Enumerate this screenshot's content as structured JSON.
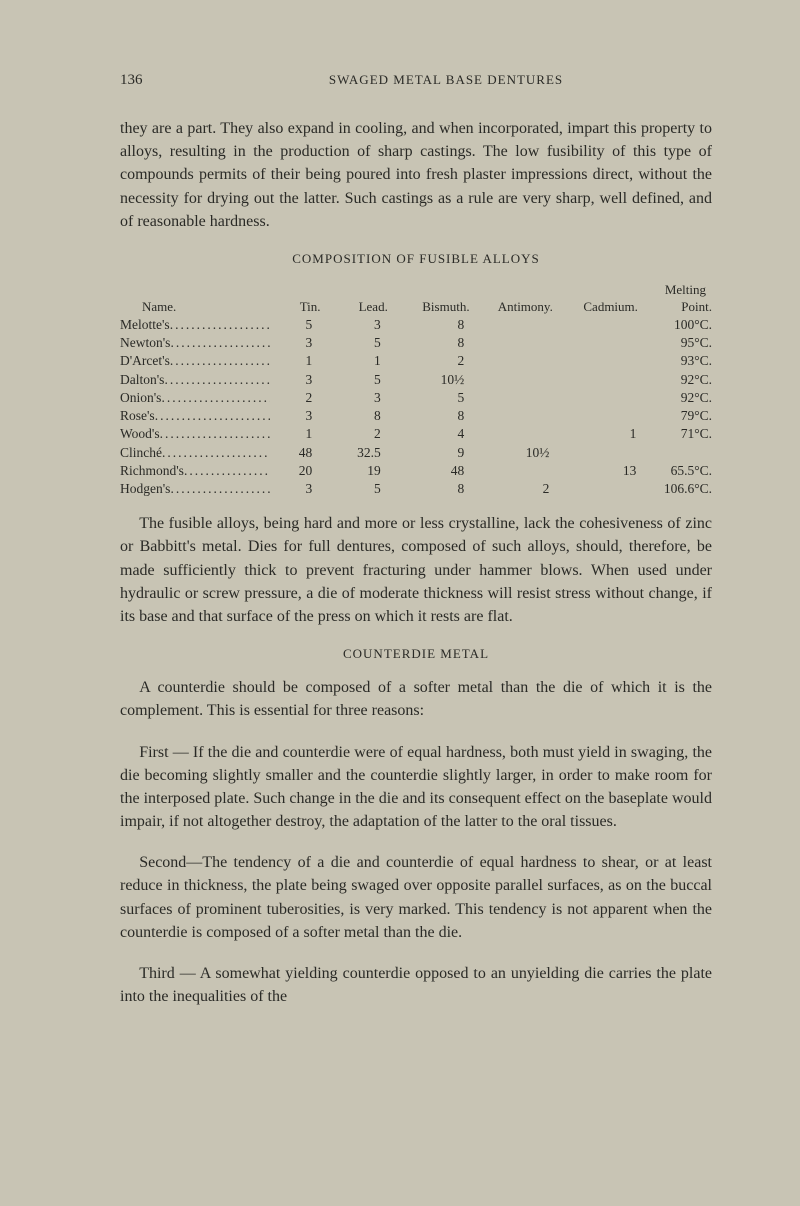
{
  "header": {
    "page_number": "136",
    "running_head": "SWAGED METAL BASE DENTURES"
  },
  "para1": "they are a part. They also expand in cooling, and when incorporated, impart this property to alloys, resulting in the production of sharp castings. The low fusibility of this type of compounds permits of their being poured into fresh plaster impressions direct, without the necessity for drying out the latter. Such castings as a rule are very sharp, well defined, and of reasonable hardness.",
  "table_title": "COMPOSITION OF FUSIBLE ALLOYS",
  "table": {
    "melting_label": "Melting",
    "headers": {
      "name": "Name.",
      "tin": "Tin.",
      "lead": "Lead.",
      "bismuth": "Bismuth.",
      "antimony": "Antimony.",
      "cadmium": "Cadmium.",
      "point": "Point."
    },
    "rows": [
      {
        "name": "Melotte's",
        "tin": "5",
        "lead": "3",
        "bis": "8",
        "ant": "",
        "cad": "",
        "mp": "100°C."
      },
      {
        "name": "Newton's",
        "tin": "3",
        "lead": "5",
        "bis": "8",
        "ant": "",
        "cad": "",
        "mp": "95°C."
      },
      {
        "name": "D'Arcet's",
        "tin": "1",
        "lead": "1",
        "bis": "2",
        "ant": "",
        "cad": "",
        "mp": "93°C."
      },
      {
        "name": "Dalton's",
        "tin": "3",
        "lead": "5",
        "bis": "10½",
        "ant": "",
        "cad": "",
        "mp": "92°C."
      },
      {
        "name": "Onion's",
        "tin": "2",
        "lead": "3",
        "bis": "5",
        "ant": "",
        "cad": "",
        "mp": "92°C."
      },
      {
        "name": "Rose's",
        "tin": "3",
        "lead": "8",
        "bis": "8",
        "ant": "",
        "cad": "",
        "mp": "79°C."
      },
      {
        "name": "Wood's",
        "tin": "1",
        "lead": "2",
        "bis": "4",
        "ant": "",
        "cad": "1",
        "mp": "71°C."
      },
      {
        "name": "Clinché",
        "tin": "48",
        "lead": "32.5",
        "bis": "9",
        "ant": "10½",
        "cad": "",
        "mp": ""
      },
      {
        "name": "Richmond's",
        "tin": "20",
        "lead": "19",
        "bis": "48",
        "ant": "",
        "cad": "13",
        "mp": "65.5°C."
      },
      {
        "name": "Hodgen's",
        "tin": "3",
        "lead": "5",
        "bis": "8",
        "ant": "2",
        "cad": "",
        "mp": "106.6°C."
      }
    ]
  },
  "para2": "The fusible alloys, being hard and more or less crystalline, lack the cohesiveness of zinc or Babbitt's metal. Dies for full dentures, composed of such alloys, should, therefore, be made sufficiently thick to prevent fracturing under hammer blows. When used under hydraulic or screw pressure, a die of moderate thickness will resist stress without change, if its base and that surface of the press on which it rests are flat.",
  "section2_title": "COUNTERDIE METAL",
  "para3": "A counterdie should be composed of a softer metal than the die of which it is the complement. This is essential for three reasons:",
  "para4": "First — If the die and counterdie were of equal hardness, both must yield in swaging, the die becoming slightly smaller and the counterdie slightly larger, in order to make room for the interposed plate. Such change in the die and its consequent effect on the baseplate would impair, if not altogether destroy, the adaptation of the latter to the oral tissues.",
  "para5": "Second—The tendency of a die and counterdie of equal hardness to shear, or at least reduce in thickness, the plate being swaged over opposite parallel surfaces, as on the buccal surfaces of prominent tuberosities, is very marked. This tendency is not apparent when the counterdie is composed of a softer metal than the die.",
  "para6": "Third — A somewhat yielding counterdie opposed to an unyielding die carries the plate into the inequalities of the"
}
